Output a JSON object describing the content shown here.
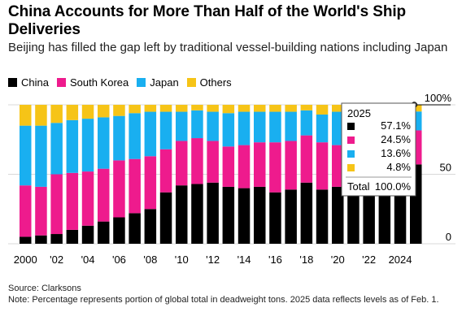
{
  "title": "China Accounts for More Than Half of the World's Ship Deliveries",
  "subtitle": "Beijing has filled the gap left by traditional vessel-building nations including Japan",
  "source": "Source: Clarksons",
  "note": "Note: Percentage represents portion of global total in deadweight tons. 2025 data reflects levels as of Feb. 1.",
  "colors": {
    "China": "#000000",
    "South Korea": "#ee1b8d",
    "Japan": "#19aff0",
    "Others": "#f6c417",
    "grid": "#d9d9d9"
  },
  "chart_data": {
    "type": "bar",
    "stacked": true,
    "title": "China Accounts for More Than Half of the World's Ship Deliveries",
    "subtitle": "Beijing has filled the gap left by traditional vessel-building nations including Japan",
    "xlabel": "",
    "ylabel": "",
    "ylim": [
      0,
      100
    ],
    "y_ticks": [
      "0",
      "50",
      "100%"
    ],
    "x_tick_labels": [
      "2000",
      "'02",
      "'04",
      "'06",
      "'08",
      "'10",
      "'12",
      "'14",
      "'16",
      "'18",
      "'20",
      "'22",
      "2024"
    ],
    "categories": [
      "2000",
      "2001",
      "2002",
      "2003",
      "2004",
      "2005",
      "2006",
      "2007",
      "2008",
      "2009",
      "2010",
      "2011",
      "2012",
      "2013",
      "2014",
      "2015",
      "2016",
      "2017",
      "2018",
      "2019",
      "2020",
      "2021",
      "2022",
      "2023",
      "2024",
      "2025"
    ],
    "series": [
      {
        "name": "China",
        "values": [
          5,
          6,
          7,
          10,
          13,
          16,
          19,
          22,
          25,
          37,
          42,
          43,
          44,
          41,
          40,
          41,
          37,
          39,
          44,
          39,
          41,
          44,
          47,
          50,
          55,
          57.1
        ]
      },
      {
        "name": "South Korea",
        "values": [
          37,
          35,
          43,
          41,
          39,
          38,
          41,
          39,
          38,
          31,
          32,
          33,
          30,
          29,
          31,
          32,
          36,
          35,
          34,
          34,
          30,
          30,
          28,
          27,
          25,
          24.5
        ]
      },
      {
        "name": "Japan",
        "values": [
          43,
          44,
          37,
          38,
          38,
          37,
          32,
          33,
          32,
          27,
          21,
          20,
          21,
          24,
          24,
          22,
          22,
          21,
          18,
          20,
          24,
          22,
          22,
          20,
          17,
          13.6
        ]
      },
      {
        "name": "Others",
        "values": [
          15,
          15,
          13,
          11,
          10,
          9,
          8,
          6,
          5,
          5,
          5,
          4,
          5,
          6,
          5,
          5,
          5,
          5,
          4,
          7,
          5,
          4,
          3,
          3,
          3,
          4.8
        ]
      }
    ],
    "legend_placement": "top-left",
    "grid": true,
    "tooltip": {
      "header": "2025",
      "rows": [
        {
          "series": "China",
          "label": "57.1%"
        },
        {
          "series": "South Korea",
          "label": "24.5%"
        },
        {
          "series": "Japan",
          "label": "13.6%"
        },
        {
          "series": "Others",
          "label": "4.8%"
        }
      ],
      "total_label": "Total",
      "total_value": "100.0%"
    }
  }
}
